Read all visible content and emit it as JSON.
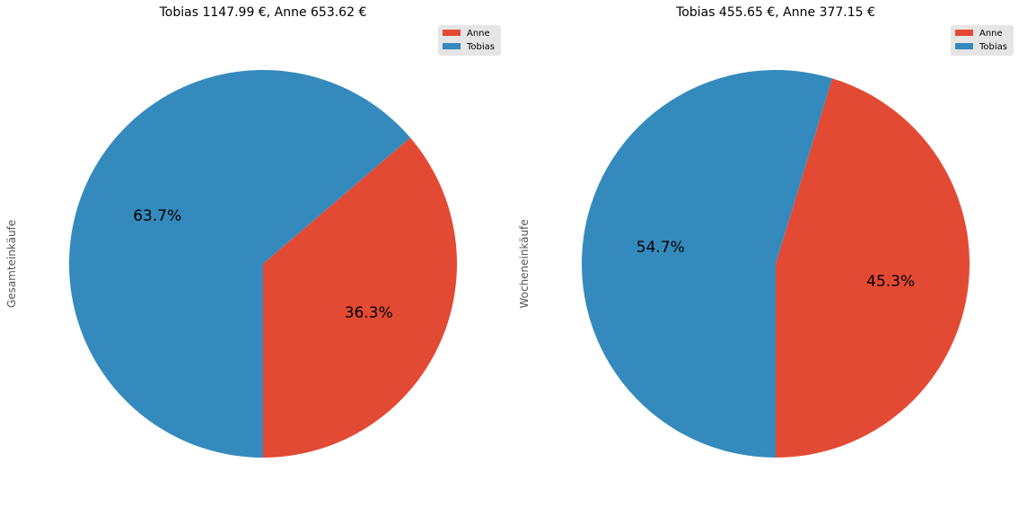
{
  "chart_data": [
    {
      "type": "pie",
      "title": "Tobias 1147.99 €, Anne 653.62 €",
      "ylabel": "Gesamteinkäufe",
      "labels": [
        "Anne",
        "Tobias"
      ],
      "values": [
        653.62,
        1147.99
      ],
      "percent_labels": [
        "36.3%",
        "63.7%"
      ],
      "colors": [
        "#E24A33",
        "#348ABD"
      ],
      "start_angle_deg": 270,
      "direction": "counterclockwise",
      "legend": {
        "position": "top-right",
        "entries": [
          "Anne",
          "Tobias"
        ]
      }
    },
    {
      "type": "pie",
      "title": "Tobias 455.65 €, Anne 377.15 €",
      "ylabel": "Wocheneinkäufe",
      "labels": [
        "Anne",
        "Tobias"
      ],
      "values": [
        377.15,
        455.65
      ],
      "percent_labels": [
        "45.3%",
        "54.7%"
      ],
      "colors": [
        "#E24A33",
        "#348ABD"
      ],
      "start_angle_deg": 270,
      "direction": "counterclockwise",
      "legend": {
        "position": "top-right",
        "entries": [
          "Anne",
          "Tobias"
        ]
      }
    }
  ]
}
